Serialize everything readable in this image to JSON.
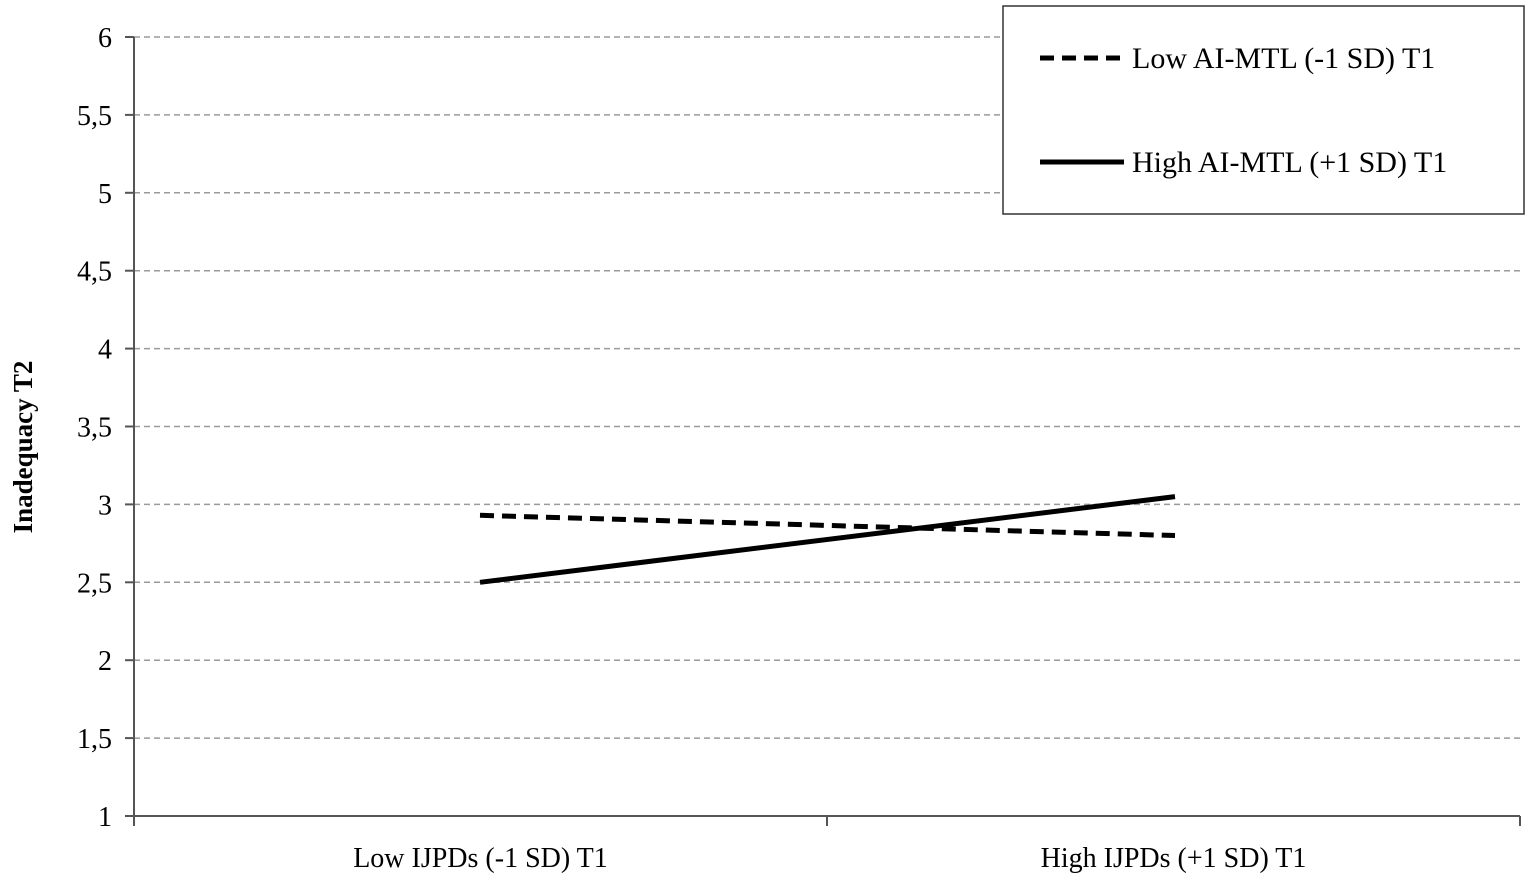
{
  "chart_data": {
    "type": "line",
    "categories": [
      "Low IJPDs (-1 SD) T1",
      "High IJPDs (+1 SD) T1"
    ],
    "ylabel": "Inadequacy T2",
    "xlabel": "",
    "ylim": [
      1,
      6
    ],
    "yticks": [
      1,
      1.5,
      2,
      2.5,
      3,
      3.5,
      4,
      4.5,
      5,
      5.5,
      6
    ],
    "ytick_labels": [
      "1",
      "1,5",
      "2",
      "2,5",
      "3",
      "3,5",
      "4",
      "4,5",
      "5",
      "5,5",
      "6"
    ],
    "grid": "horizontal dashed",
    "legend_position": "top-right",
    "series": [
      {
        "name": "Low AI-MTL (-1 SD) T1",
        "values": [
          2.93,
          2.8
        ],
        "line_style": "dashed",
        "color": "#000000"
      },
      {
        "name": "High AI-MTL (+1 SD) T1",
        "values": [
          2.5,
          3.05
        ],
        "line_style": "solid",
        "color": "#000000"
      }
    ]
  }
}
